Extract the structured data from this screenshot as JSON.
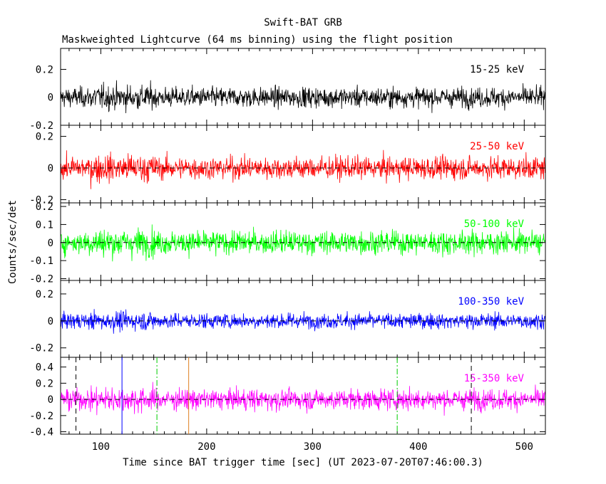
{
  "chart_data": {
    "type": "line",
    "title": "Swift-BAT GRB",
    "subtitle": "Maskweighted Lightcurve (64 ms binning) using the flight position",
    "xlabel": "Time since BAT trigger time [sec] (UT 2023-07-20T07:46:00.3)",
    "ylabel": "Counts/sec/det",
    "xlim": [
      62,
      520
    ],
    "xticks": [
      100,
      200,
      300,
      400,
      500
    ],
    "panels": [
      {
        "name": "band-15-25",
        "band_label": "15-25 keV",
        "color": "#000000",
        "ylim": [
          -0.2,
          0.35
        ],
        "yticks": [
          -0.2,
          0,
          0.2
        ],
        "ytick_labels": [
          "-0.2",
          "0",
          "0.2"
        ],
        "noise_sigma": 0.05,
        "zero_line": false
      },
      {
        "name": "band-25-50",
        "band_label": "25-50 keV",
        "color": "#ff0000",
        "ylim": [
          -0.22,
          0.27
        ],
        "yticks": [
          -0.2,
          0,
          0.2
        ],
        "ytick_labels": [
          "-0.2",
          "0",
          "0.2"
        ],
        "noise_sigma": 0.05,
        "zero_line": true
      },
      {
        "name": "band-50-100",
        "band_label": "50-100 keV",
        "color": "#00ff00",
        "ylim": [
          -0.21,
          0.22
        ],
        "yticks": [
          -0.2,
          -0.1,
          0,
          0.1,
          0.2
        ],
        "ytick_labels": [
          "-0.2",
          "-0.1",
          "0",
          "0.1",
          "0.2"
        ],
        "noise_sigma": 0.045,
        "zero_line": true
      },
      {
        "name": "band-100-350",
        "band_label": "100-350 keV",
        "color": "#0000ff",
        "ylim": [
          -0.27,
          0.3
        ],
        "yticks": [
          -0.2,
          0,
          0.2
        ],
        "ytick_labels": [
          "-0.2",
          "0",
          "0.2"
        ],
        "noise_sigma": 0.04,
        "zero_line": true
      },
      {
        "name": "band-15-350",
        "band_label": "15-350 keV",
        "color": "#ff00ff",
        "ylim": [
          -0.43,
          0.52
        ],
        "yticks": [
          -0.4,
          -0.2,
          0,
          0.2,
          0.4
        ],
        "ytick_labels": [
          "-0.4",
          "-0.2",
          "0",
          "0.2",
          "0.4"
        ],
        "noise_sigma": 0.09,
        "zero_line": true
      }
    ],
    "markers": [
      {
        "x": 76.5,
        "color": "#000000",
        "style": "dashed"
      },
      {
        "x": 120,
        "color": "#0000ff",
        "style": "solid"
      },
      {
        "x": 153,
        "color": "#00cc00",
        "style": "dashdot"
      },
      {
        "x": 183,
        "color": "#e08020",
        "style": "solid"
      },
      {
        "x": 380,
        "color": "#00cc00",
        "style": "dashdot"
      },
      {
        "x": 450,
        "color": "#000000",
        "style": "dashed"
      }
    ]
  }
}
